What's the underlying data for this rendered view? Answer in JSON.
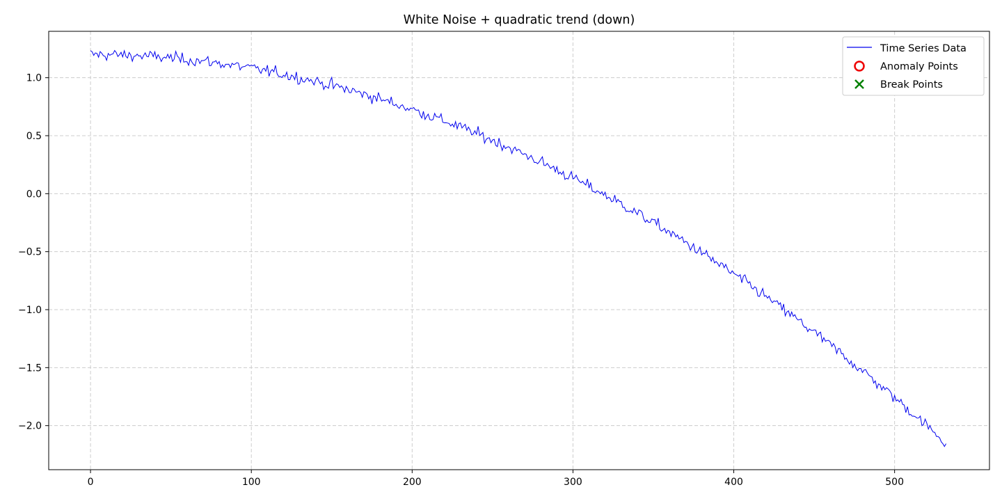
{
  "chart_data": {
    "type": "line",
    "title": "White Noise + quadratic trend (down)",
    "xlabel": "",
    "ylabel": "",
    "xlim": [
      -26,
      559
    ],
    "ylim": [
      -2.38,
      1.4
    ],
    "x_ticks": [
      0,
      100,
      200,
      300,
      400,
      500
    ],
    "y_ticks": [
      1.0,
      0.5,
      0.0,
      -0.5,
      -1.0,
      -1.5,
      -2.0
    ],
    "y_tick_labels": [
      "1.0",
      "0.5",
      "0.0",
      "−0.5",
      "−1.0",
      "−1.5",
      "−2.0"
    ],
    "grid": true,
    "legend_placement": "top-right",
    "series": [
      {
        "name": "Time Series Data",
        "color": "#0000ee",
        "x_start": 0,
        "x_end": 532,
        "trend_y0": 1.2,
        "trend_ynext": -2.15,
        "trend_shape": "quadratic-down",
        "noise_sd": 0.025
      }
    ],
    "legend": [
      {
        "label": "Time Series Data",
        "marker": "line",
        "color": "#0000ee"
      },
      {
        "label": "Anomaly Points",
        "marker": "circle",
        "color": "#ee0000"
      },
      {
        "label": "Break Points",
        "marker": "x",
        "color": "#008000"
      }
    ],
    "anomaly_points": [],
    "break_points": []
  }
}
